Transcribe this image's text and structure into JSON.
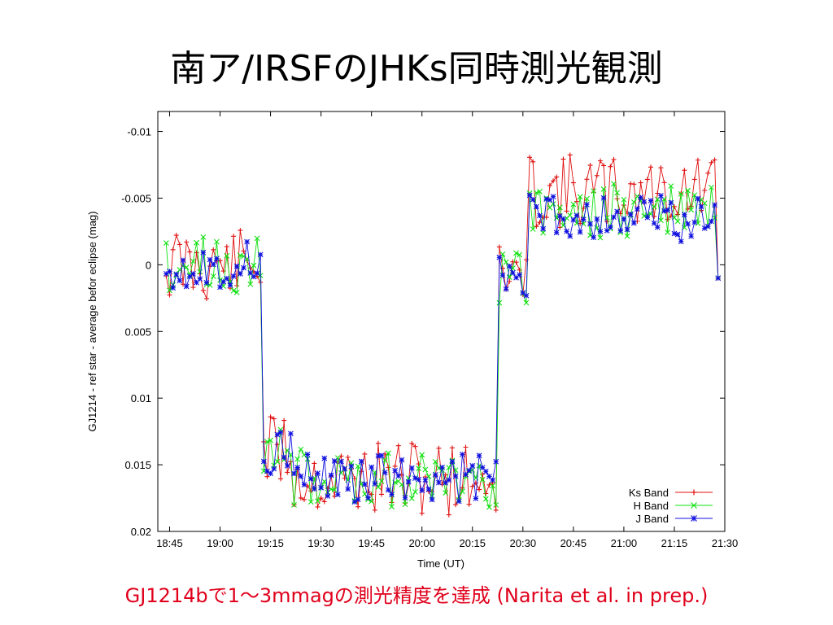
{
  "slide": {
    "title": "南ア/IRSFのJHKs同時測光観測",
    "caption": "GJ1214bで1〜3mmagの測光精度を達成 (Narita et al. in prep.)"
  },
  "chart_data": {
    "type": "line",
    "xlabel": "Time (UT)",
    "ylabel": "GJ1214 - ref star - average befor eclipse (mag)",
    "x_ticks": [
      "18:45",
      "19:00",
      "19:15",
      "19:30",
      "19:45",
      "20:00",
      "20:15",
      "20:30",
      "20:45",
      "21:00",
      "21:15",
      "21:30"
    ],
    "y_ticks": [
      "-0.01",
      "-0.005",
      "0",
      "0.005",
      "0.01",
      "0.015",
      "0.02"
    ],
    "y_tick_values": [
      -0.01,
      -0.005,
      0,
      0.005,
      0.01,
      0.015,
      0.02
    ],
    "xlim_minutes_after_1845": [
      -3.5,
      165
    ],
    "ylim": [
      -0.0115,
      0.02
    ],
    "y_inverted": true,
    "legend": {
      "position": "bottom-right"
    },
    "grid": false,
    "segments_minutes_after_1845": [
      {
        "t0": -1,
        "t1": 28,
        "level": 0.0
      },
      {
        "t0": 28,
        "t1": 37,
        "level": 0.014
      },
      {
        "t0": 37,
        "t1": 98,
        "level": 0.016
      },
      {
        "t0": 98,
        "t1": 107,
        "level": 0.001
      },
      {
        "t0": 107,
        "t1": 163,
        "level": -0.004
      }
    ],
    "series": [
      {
        "name": "Ks Band",
        "color": "#e01010",
        "marker": "plus",
        "noise": 0.0028,
        "offset": -0.0015,
        "seed": 11
      },
      {
        "name": "H Band",
        "color": "#10e010",
        "marker": "x",
        "noise": 0.0022,
        "offset": 0.0,
        "seed": 23
      },
      {
        "name": "J Band",
        "color": "#1010e0",
        "marker": "star",
        "noise": 0.0018,
        "offset": 0.0005,
        "seed": 37
      }
    ]
  }
}
